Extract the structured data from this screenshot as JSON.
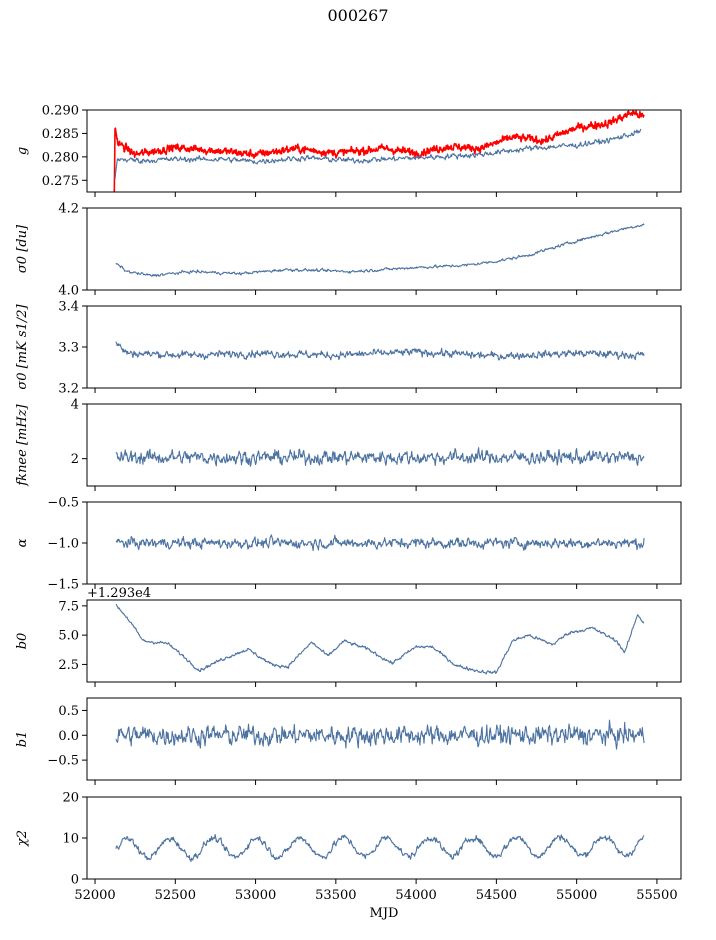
{
  "figure": {
    "title": "000267",
    "xlabel": "MJD"
  },
  "chart_data": {
    "type": "line",
    "xlim": [
      51950,
      55650
    ],
    "x_ticks": [
      52000,
      52500,
      53000,
      53500,
      54000,
      54500,
      55000,
      55500
    ],
    "x_tick_labels": [
      "52000",
      "52500",
      "53000",
      "53500",
      "54000",
      "54500",
      "55000",
      "55500"
    ],
    "x_range": [
      52130,
      55420
    ],
    "colors": {
      "series": "#4c72a0",
      "highlight": "#ff0000"
    },
    "panels": [
      {
        "ylabel": "g",
        "ylim": [
          0.2725,
          0.29
        ],
        "yticks": [
          0.275,
          0.28,
          0.285,
          0.29
        ],
        "ytick_labels": [
          "0.275",
          "0.280",
          "0.285",
          "0.290"
        ],
        "series": [
          {
            "color": "red",
            "noise": 0.0007,
            "anchors": [
              [
                52120,
                0.2725
              ],
              [
                52125,
                0.287
              ],
              [
                52140,
                0.283
              ],
              [
                52250,
                0.2805
              ],
              [
                52500,
                0.282
              ],
              [
                52800,
                0.2812
              ],
              [
                53000,
                0.2805
              ],
              [
                53250,
                0.2818
              ],
              [
                53500,
                0.2808
              ],
              [
                53800,
                0.2818
              ],
              [
                54000,
                0.2808
              ],
              [
                54200,
                0.2822
              ],
              [
                54400,
                0.2818
              ],
              [
                54600,
                0.2842
              ],
              [
                54800,
                0.2835
              ],
              [
                55000,
                0.2862
              ],
              [
                55200,
                0.2872
              ],
              [
                55350,
                0.2895
              ],
              [
                55420,
                0.2885
              ]
            ]
          },
          {
            "color": "blue",
            "noise": 0.0005,
            "anchors": [
              [
                52125,
                0.2755
              ],
              [
                52140,
                0.2795
              ],
              [
                52300,
                0.2792
              ],
              [
                52500,
                0.2795
              ],
              [
                52800,
                0.2795
              ],
              [
                53000,
                0.279
              ],
              [
                53300,
                0.2798
              ],
              [
                53600,
                0.2792
              ],
              [
                54000,
                0.2798
              ],
              [
                54400,
                0.2805
              ],
              [
                54700,
                0.2818
              ],
              [
                55000,
                0.2825
              ],
              [
                55200,
                0.2835
              ],
              [
                55400,
                0.2855
              ]
            ]
          }
        ]
      },
      {
        "ylabel": "σ0 [du]",
        "ylim": [
          4.0,
          4.2
        ],
        "yticks": [
          4.0,
          4.2
        ],
        "ytick_labels": [
          "4.0",
          "4.2"
        ],
        "series": [
          {
            "color": "blue",
            "noise": 0.003,
            "anchors": [
              [
                52130,
                4.065
              ],
              [
                52200,
                4.045
              ],
              [
                52350,
                4.035
              ],
              [
                52600,
                4.045
              ],
              [
                52900,
                4.04
              ],
              [
                53200,
                4.05
              ],
              [
                53600,
                4.045
              ],
              [
                54000,
                4.055
              ],
              [
                54300,
                4.06
              ],
              [
                54500,
                4.07
              ],
              [
                54700,
                4.085
              ],
              [
                55000,
                4.12
              ],
              [
                55150,
                4.135
              ],
              [
                55300,
                4.15
              ],
              [
                55420,
                4.16
              ]
            ]
          }
        ]
      },
      {
        "ylabel": "σ0 [mK s1/2]",
        "ylim": [
          3.2,
          3.4
        ],
        "yticks": [
          3.2,
          3.3,
          3.4
        ],
        "ytick_labels": [
          "3.2",
          "3.3",
          "3.4"
        ],
        "series": [
          {
            "color": "blue",
            "noise": 0.008,
            "anchors": [
              [
                52130,
                3.31
              ],
              [
                52200,
                3.285
              ],
              [
                52600,
                3.28
              ],
              [
                53000,
                3.285
              ],
              [
                53500,
                3.28
              ],
              [
                54000,
                3.288
              ],
              [
                54500,
                3.278
              ],
              [
                55000,
                3.285
              ],
              [
                55420,
                3.28
              ]
            ]
          }
        ]
      },
      {
        "ylabel": "fknee [mHz]",
        "ylim": [
          1.0,
          4.0
        ],
        "yticks": [
          2,
          4
        ],
        "ytick_labels": [
          "2",
          "4"
        ],
        "series": [
          {
            "color": "blue",
            "noise": 0.22,
            "anchors": [
              [
                52130,
                2.05
              ],
              [
                55420,
                2.05
              ]
            ]
          }
        ]
      },
      {
        "ylabel": "α",
        "ylim": [
          -1.5,
          -0.5
        ],
        "yticks": [
          -1.5,
          -1.0,
          -0.5
        ],
        "ytick_labels": [
          "−1.5",
          "−1.0",
          "−0.5"
        ],
        "series": [
          {
            "color": "blue",
            "noise": 0.055,
            "anchors": [
              [
                52130,
                -1.0
              ],
              [
                55420,
                -1.0
              ]
            ]
          }
        ]
      },
      {
        "ylabel": "b0",
        "offset_label": "+1.293e4",
        "ylim": [
          1.0,
          8.0
        ],
        "yticks": [
          2.5,
          5.0,
          7.5
        ],
        "ytick_labels": [
          "2.5",
          "5.0",
          "7.5"
        ],
        "series": [
          {
            "color": "blue",
            "noise": 0.12,
            "anchors": [
              [
                52130,
                7.6
              ],
              [
                52200,
                6.5
              ],
              [
                52300,
                4.5
              ],
              [
                52450,
                4.3
              ],
              [
                52550,
                3.2
              ],
              [
                52650,
                2.0
              ],
              [
                52800,
                3.0
              ],
              [
                52950,
                3.8
              ],
              [
                53100,
                2.5
              ],
              [
                53200,
                2.3
              ],
              [
                53350,
                4.4
              ],
              [
                53450,
                3.2
              ],
              [
                53550,
                4.5
              ],
              [
                53700,
                3.8
              ],
              [
                53850,
                2.6
              ],
              [
                54000,
                4.0
              ],
              [
                54100,
                4.0
              ],
              [
                54250,
                2.4
              ],
              [
                54400,
                1.9
              ],
              [
                54500,
                1.8
              ],
              [
                54600,
                4.5
              ],
              [
                54700,
                5.0
              ],
              [
                54850,
                4.2
              ],
              [
                54950,
                5.2
              ],
              [
                55100,
                5.6
              ],
              [
                55250,
                4.5
              ],
              [
                55300,
                3.5
              ],
              [
                55380,
                6.8
              ],
              [
                55420,
                6.0
              ]
            ]
          }
        ]
      },
      {
        "ylabel": "b1",
        "ylim": [
          -0.9,
          0.75
        ],
        "yticks": [
          -0.5,
          0.0,
          0.5
        ],
        "ytick_labels": [
          "−0.5",
          "0.0",
          "0.5"
        ],
        "series": [
          {
            "color": "blue",
            "noise": 0.17,
            "anchors": [
              [
                52130,
                0.0
              ],
              [
                55420,
                0.0
              ]
            ]
          }
        ]
      },
      {
        "ylabel": "χ2",
        "ylim": [
          0,
          20
        ],
        "yticks": [
          0,
          10,
          20
        ],
        "ytick_labels": [
          "0",
          "10",
          "20"
        ],
        "series": [
          {
            "color": "blue",
            "noise": 0.7,
            "periodic": [
              7.5,
              2.3,
              270
            ],
            "anchors": [
              [
                52130,
                6.0
              ],
              [
                55420,
                8.0
              ]
            ]
          }
        ]
      }
    ]
  }
}
